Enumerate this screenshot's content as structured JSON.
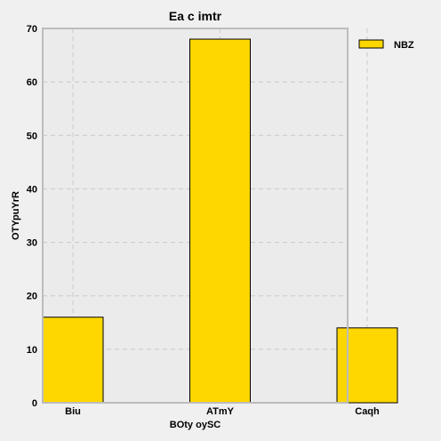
{
  "chart_data": {
    "type": "bar",
    "title": "Ea c imtr",
    "xlabel": "BOty oySC",
    "ylabel": "OTYpuYrR",
    "categories": [
      "Biu",
      "ATmY",
      "Caqh"
    ],
    "series": [
      {
        "name": "NBZ",
        "values": [
          16,
          68,
          14
        ],
        "color": "#ffd700"
      }
    ],
    "ylim": [
      0,
      70
    ],
    "yticks": [
      0,
      10,
      20,
      30,
      40,
      50,
      60,
      70
    ],
    "grid": true,
    "legend_position": "outside-top-right",
    "colors": {
      "background": "#f0f0f0",
      "plot_background": "#ebebeb",
      "grid": "#c8c8c8",
      "frame": "#bcbcbc",
      "bar_edge": "#000000"
    }
  }
}
